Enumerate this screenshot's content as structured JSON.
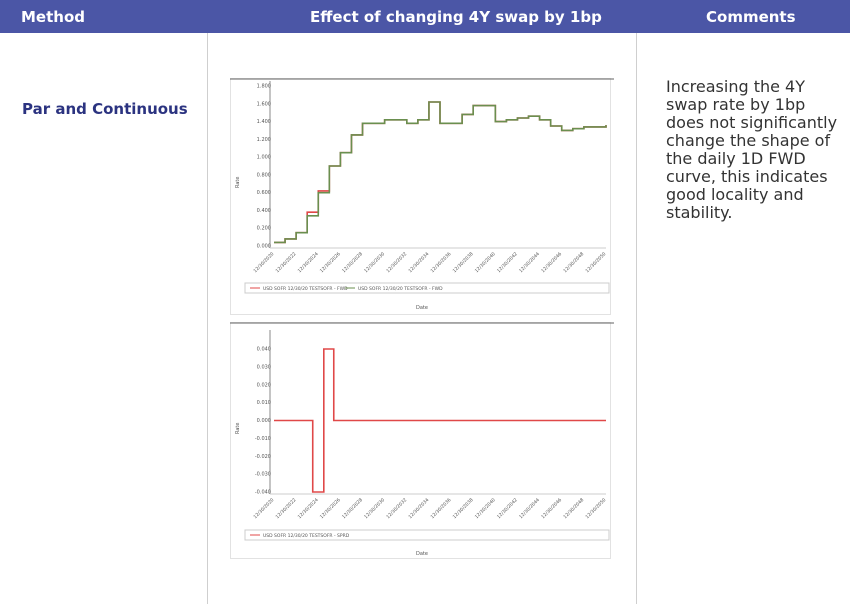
{
  "header": {
    "method": "Method",
    "effect": "Effect of changing 4Y swap by 1bp",
    "comments": "Comments"
  },
  "row": {
    "method": "Par and Continuous",
    "comment": "Increasing the 4Y swap rate by 1bp does not significantly change the shape of the daily 1D FWD curve, this indicates good locality and stability."
  },
  "colors": {
    "header_bg": "#4b56a6",
    "series_red": "#e04848",
    "series_green": "#6a8f4f"
  },
  "chart_data": [
    {
      "type": "line",
      "title": "",
      "xlabel": "Date",
      "ylabel": "Rate",
      "ylim": [
        0.0,
        1.8
      ],
      "yticks": [
        "1.800",
        "1.600",
        "1.400",
        "1.200",
        "1.000",
        "0.800",
        "0.600",
        "0.400",
        "0.200",
        "0.000"
      ],
      "xticks": [
        "12/30/2020",
        "12/30/2022",
        "12/30/2024",
        "12/30/2026",
        "12/30/2028",
        "12/30/2030",
        "12/30/2032",
        "12/30/2034",
        "12/30/2036",
        "12/30/2038",
        "12/30/2040",
        "12/30/2042",
        "12/30/2044",
        "12/30/2046",
        "12/30/2048",
        "12/30/2050"
      ],
      "x": [
        2020,
        2021,
        2022,
        2023,
        2024,
        2025,
        2026,
        2027,
        2028,
        2030,
        2032,
        2033,
        2034,
        2035,
        2037,
        2038,
        2040,
        2041,
        2042,
        2043,
        2044,
        2045,
        2046,
        2047,
        2048,
        2050
      ],
      "series": [
        {
          "name": "USD SOFR 12/30/20 TESTSOFR - FWD",
          "color": "#e04848",
          "values": [
            0.04,
            0.08,
            0.15,
            0.38,
            0.62,
            0.9,
            1.05,
            1.25,
            1.38,
            1.42,
            1.38,
            1.42,
            1.62,
            1.38,
            1.48,
            1.58,
            1.4,
            1.42,
            1.44,
            1.46,
            1.42,
            1.35,
            1.3,
            1.32,
            1.34,
            1.36
          ]
        },
        {
          "name": "USD SOFR 12/30/20 TESTSOFR - FWD",
          "color": "#6a8f4f",
          "values": [
            0.04,
            0.08,
            0.15,
            0.34,
            0.6,
            0.9,
            1.05,
            1.25,
            1.38,
            1.42,
            1.38,
            1.42,
            1.62,
            1.38,
            1.48,
            1.58,
            1.4,
            1.42,
            1.44,
            1.46,
            1.42,
            1.35,
            1.3,
            1.32,
            1.34,
            1.36
          ]
        }
      ]
    },
    {
      "type": "line",
      "title": "",
      "xlabel": "Date",
      "ylabel": "Rate",
      "ylim": [
        -0.04,
        0.04
      ],
      "yticks": [
        "0.040",
        "0.030",
        "0.020",
        "0.010",
        "0.000",
        "-0.010",
        "-0.020",
        "-0.030",
        "-0.040"
      ],
      "xticks": [
        "12/30/2020",
        "12/30/2022",
        "12/30/2024",
        "12/30/2026",
        "12/30/2028",
        "12/30/2030",
        "12/30/2032",
        "12/30/2034",
        "12/30/2036",
        "12/30/2038",
        "12/30/2040",
        "12/30/2042",
        "12/30/2044",
        "12/30/2046",
        "12/30/2048",
        "12/30/2050"
      ],
      "x": [
        2020,
        2023.5,
        2024.5,
        2025.4,
        2050
      ],
      "series": [
        {
          "name": "USD SOFR 12/30/20 TESTSOFR - SPRD",
          "color": "#e04848",
          "values": [
            0.0,
            -0.04,
            0.04,
            0.0,
            0.0
          ]
        }
      ]
    }
  ]
}
